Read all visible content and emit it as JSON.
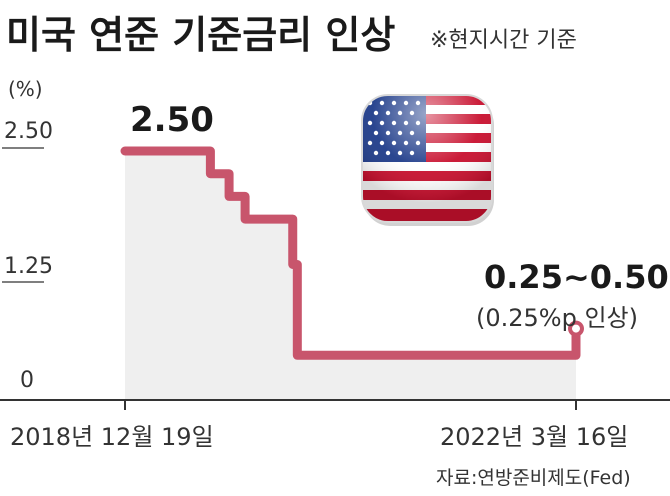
{
  "title": "미국 연준 기준금리 인상",
  "subtitle": "※현지시간 기준",
  "chart_data": {
    "type": "line",
    "step": true,
    "unit": "(%)",
    "y_ticks": [
      "2.50",
      "1.25",
      "0"
    ],
    "ylim": [
      0,
      2.5
    ],
    "x_start_label": "2018년 12월 19일",
    "x_end_label": "2022년 3월 16일",
    "x": [
      "2018-12-19",
      "2019-07-31",
      "2019-09-18",
      "2019-10-30",
      "2020-03-03",
      "2020-03-15",
      "2022-03-16"
    ],
    "series": [
      {
        "values": [
          2.5,
          2.25,
          2.0,
          1.75,
          1.25,
          0.25,
          0.5
        ]
      }
    ],
    "peak_label": "2.50",
    "end_label": "0.25~0.50",
    "end_note": "(0.25%p 인상)",
    "line_color": "#c8556c",
    "area_color": "#efefef",
    "grid": false
  },
  "flag_icon": "us-flag-icon",
  "source": "자료:연방준비제도(Fed)"
}
